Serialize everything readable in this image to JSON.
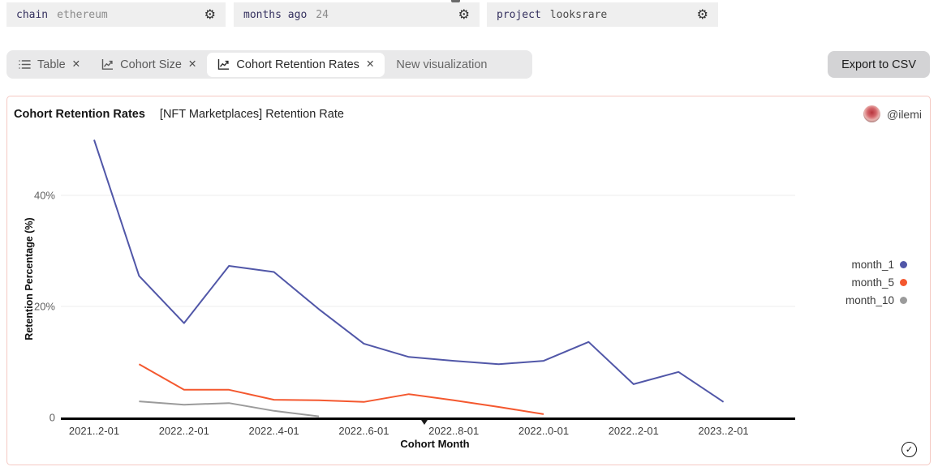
{
  "params": [
    {
      "label": "chain",
      "value": "ethereum",
      "value_color": "#8b8b8b"
    },
    {
      "label": "months ago",
      "value": "24",
      "value_color": "#8b8b8b"
    },
    {
      "label": "project",
      "value": "looksrare",
      "value_color": "#4a4a4a"
    }
  ],
  "toolbar": {
    "tabs": [
      {
        "label": "Table",
        "icon": "list-icon",
        "active": false
      },
      {
        "label": "Cohort Size",
        "icon": "line-chart-icon",
        "active": false
      },
      {
        "label": "Cohort Retention Rates",
        "icon": "line-chart-icon",
        "active": true
      }
    ],
    "new_visualization_label": "New visualization",
    "export_label": "Export to CSV"
  },
  "card": {
    "title": "Cohort Retention Rates",
    "subtitle": "[NFT Marketplaces] Retention Rate",
    "author": "@ilemi"
  },
  "chart_data": {
    "type": "line",
    "title": "[NFT Marketplaces] Retention Rate",
    "xlabel": "Cohort Month",
    "ylabel": "Retention Percentage (%)",
    "ylim": [
      0,
      52
    ],
    "grid": "horizontal",
    "legend_position": "right",
    "x": [
      "2021-12",
      "2022-01",
      "2022-02",
      "2022-03",
      "2022-04",
      "2022-05",
      "2022-06",
      "2022-07",
      "2022-08",
      "2022-09",
      "2022-10",
      "2022-11",
      "2022-12",
      "2023-01",
      "2023-02"
    ],
    "xtick_labels": [
      "2021..2-01",
      "2022..2-01",
      "2022..4-01",
      "2022..6-01",
      "2022..8-01",
      "2022..0-01",
      "2022..2-01",
      "2023..2-01"
    ],
    "yticks": [
      {
        "value": 0,
        "label": "0"
      },
      {
        "value": 20,
        "label": "20%"
      },
      {
        "value": 40,
        "label": "40%"
      }
    ],
    "series": [
      {
        "name": "month_1",
        "color": "#5157a8",
        "start_index": 0,
        "values": [
          50,
          25.5,
          17,
          27.3,
          26.2,
          19.5,
          13.3,
          10.9,
          10.2,
          9.6,
          10.2,
          13.6,
          6,
          8.2,
          2.8
        ]
      },
      {
        "name": "month_5",
        "color": "#f4582f",
        "start_index": 1,
        "values": [
          9.6,
          5,
          5,
          3.2,
          3.1,
          2.8,
          4.2,
          3.1,
          1.9,
          0.6
        ]
      },
      {
        "name": "month_10",
        "color": "#9b9b9b",
        "start_index": 1,
        "values": [
          2.9,
          2.3,
          2.6,
          1.2,
          0.2
        ]
      }
    ]
  },
  "icons": {
    "gear": "⚙",
    "close": "✕",
    "checkmark": "✓"
  }
}
